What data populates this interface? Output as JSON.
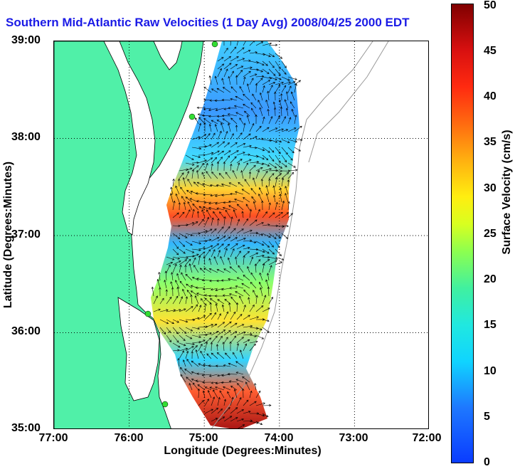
{
  "title": "Southern Mid-Atlantic Raw Velocities (1 Day Avg) 2008/04/25 2000 EDT",
  "map": {
    "xlabel": "Longitude (Degrees:Minutes)",
    "ylabel": "Latitude (Degrees:Minutes)",
    "x_ticks": [
      "77:00",
      "76:00",
      "75:00",
      "74:00",
      "73:00",
      "72:00"
    ],
    "y_ticks": [
      "39:00",
      "38:00",
      "37:00",
      "36:00",
      "35:00"
    ],
    "lon_range": [
      -77,
      -72
    ],
    "lat_range": [
      35,
      39
    ],
    "land_color": "#50f0a8",
    "site_marker_color": "#33dd33"
  },
  "colorbar": {
    "label": "Surface Velocity (cm/s)",
    "ticks": [
      "50",
      "45",
      "40",
      "35",
      "30",
      "25",
      "20",
      "15",
      "10",
      "5",
      "0"
    ],
    "range": [
      0,
      50
    ]
  }
}
